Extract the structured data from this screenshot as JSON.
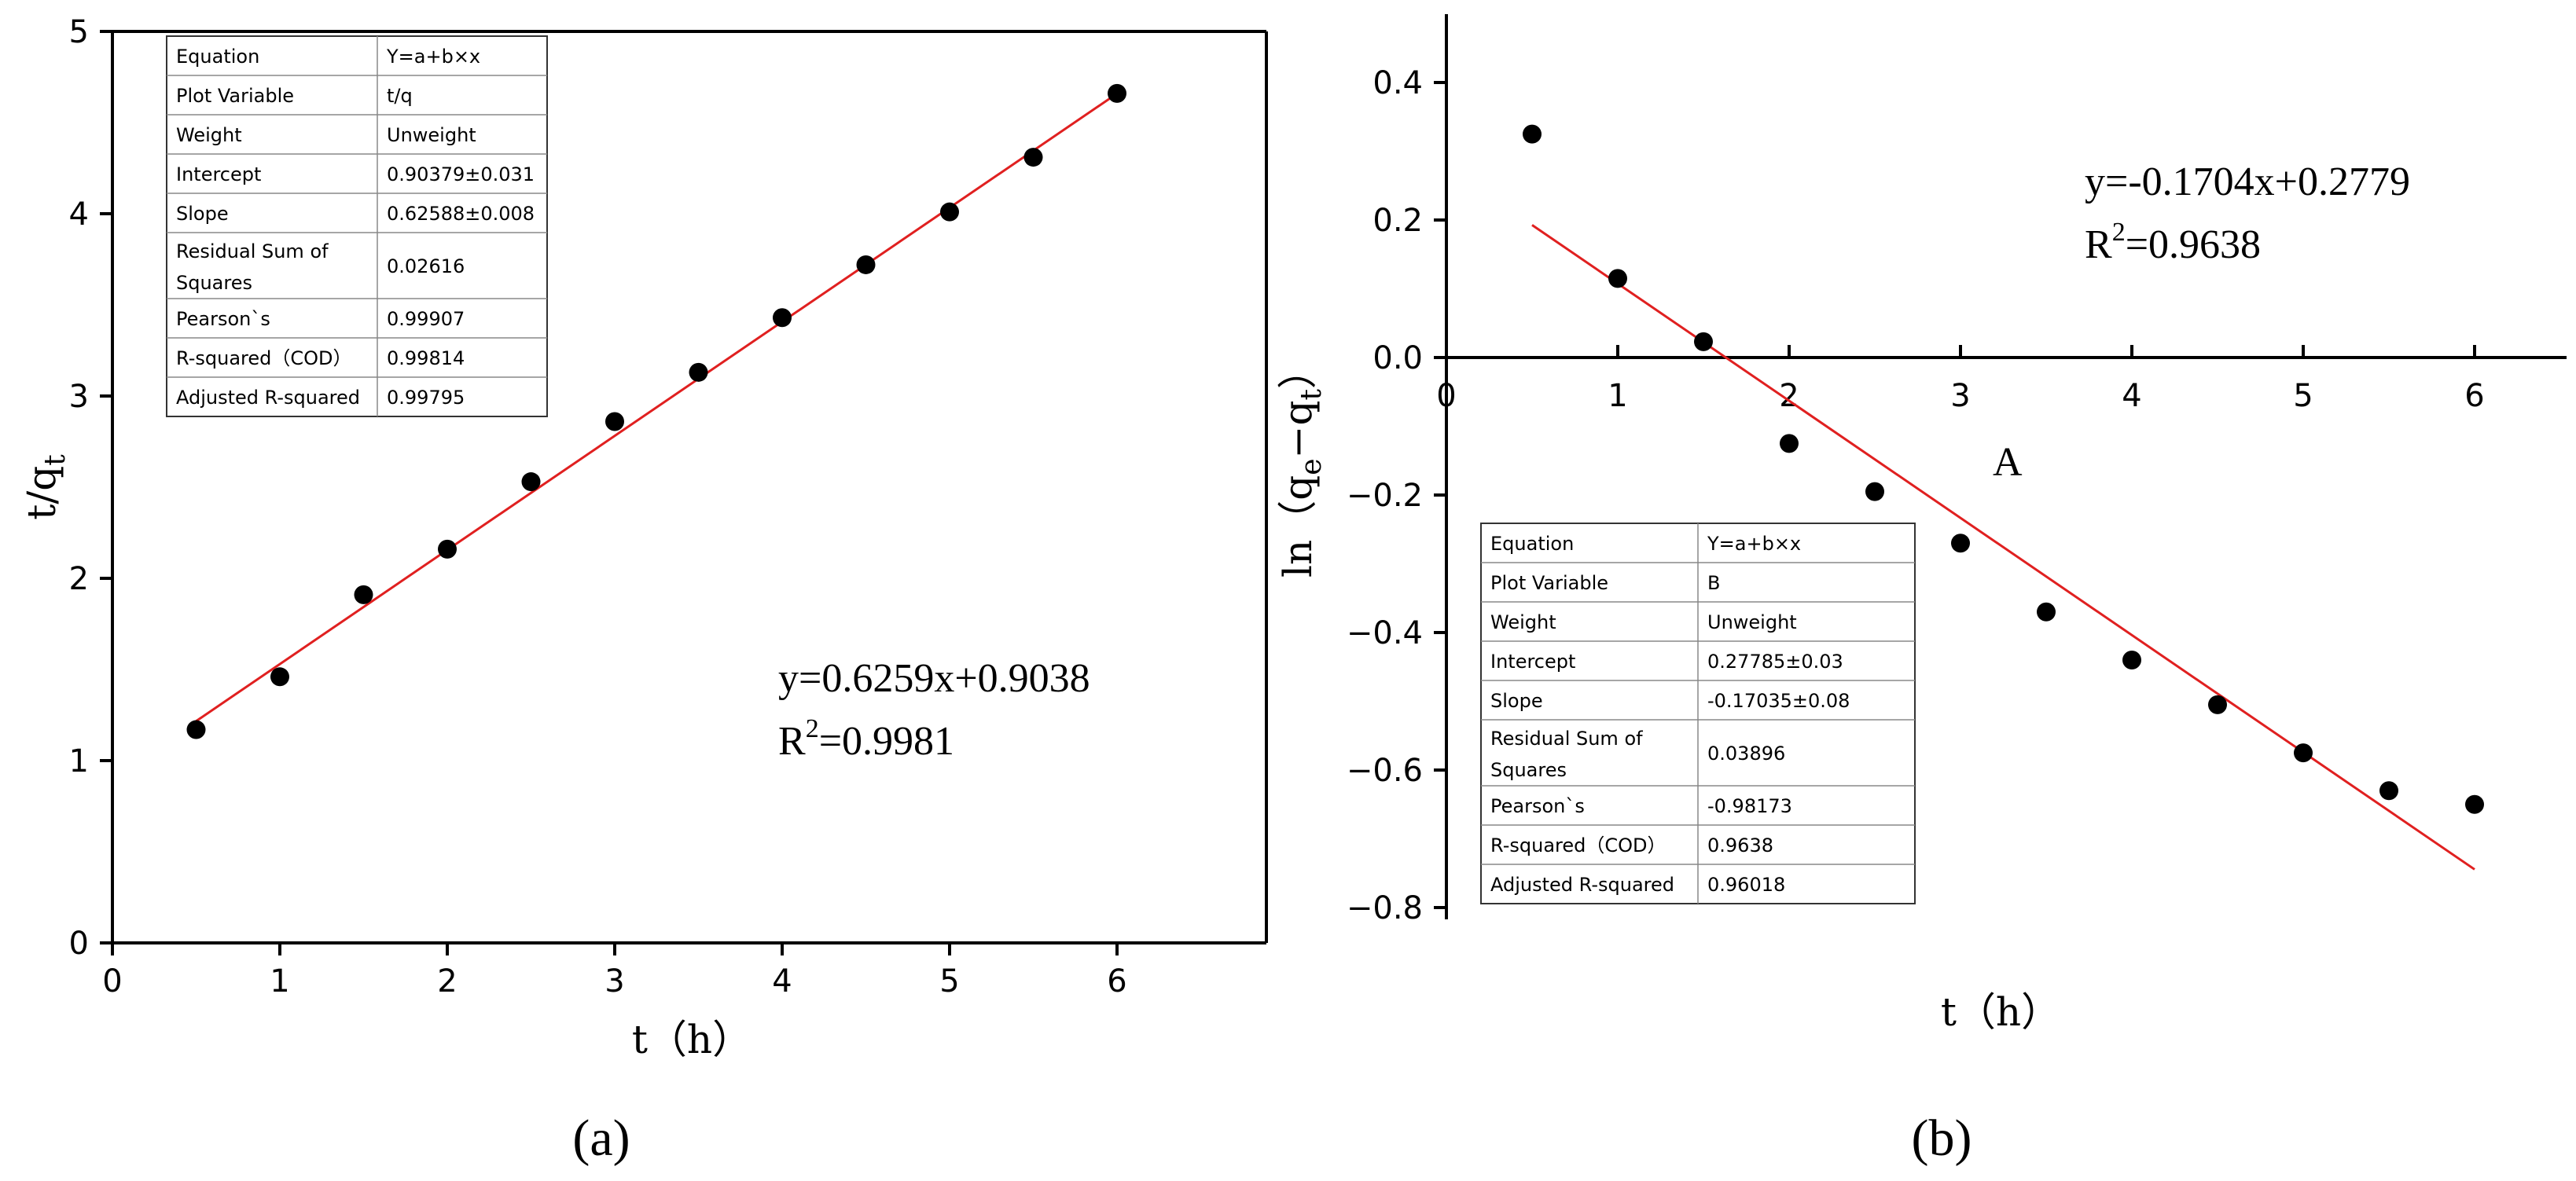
{
  "chart_data": [
    {
      "type": "scatter",
      "panel_label": "(a)",
      "xlabel": "t（h）",
      "ylabel": "t/q",
      "ylabel_sub": "t",
      "xlim": [
        0,
        7
      ],
      "ylim": [
        0,
        5
      ],
      "xticks": [
        0,
        1,
        2,
        3,
        4,
        5,
        6
      ],
      "yticks": [
        0,
        1,
        2,
        3,
        4,
        5
      ],
      "x": [
        0.5,
        1,
        1.5,
        2,
        2.5,
        3,
        3.5,
        4,
        4.5,
        5,
        5.5,
        6
      ],
      "y": [
        1.17,
        1.46,
        1.91,
        2.16,
        2.53,
        2.86,
        3.13,
        3.43,
        3.72,
        4.01,
        4.31,
        4.66
      ],
      "fit": {
        "slope": 0.6259,
        "intercept": 0.9038,
        "x_range": [
          0.5,
          6
        ]
      },
      "equation": "y=0.6259x+0.9038",
      "r2_label": "R",
      "r2_sup": "2",
      "r2_value": "=0.9981",
      "stats_table": [
        [
          "Equation",
          "Y=a+b×x"
        ],
        [
          "Plot Variable",
          "t/q"
        ],
        [
          "Weight",
          "Unweight"
        ],
        [
          "Intercept",
          "0.90379±0.031"
        ],
        [
          "Slope",
          "0.62588±0.008"
        ],
        [
          "Residual Sum of Squares",
          "0.02616"
        ],
        [
          "Pearson`s",
          "0.99907"
        ],
        [
          "R-squared（COD）",
          "0.99814"
        ],
        [
          "Adjusted R-squared",
          "0.99795"
        ]
      ],
      "grid": false
    },
    {
      "type": "scatter",
      "panel_label": "(b)",
      "xlabel": "t（h）",
      "ylabel": "ln（q",
      "ylabel_sub1": "e",
      "ylabel_mid": "−q",
      "ylabel_sub2": "t",
      "ylabel_end": "）",
      "xlim": [
        0,
        6.5
      ],
      "ylim": [
        -0.8,
        0.5
      ],
      "xticks": [
        0,
        1,
        2,
        3,
        4,
        5,
        6
      ],
      "yticks": [
        -0.8,
        -0.6,
        -0.4,
        -0.2,
        0.0,
        0.2,
        0.4
      ],
      "ytick_labels": [
        "−0.8",
        "−0.6",
        "−0.4",
        "−0.2",
        "0.0",
        "0.2",
        "0.4"
      ],
      "x": [
        0.5,
        1,
        1.5,
        2,
        2.5,
        3,
        3.5,
        4,
        4.5,
        5,
        5.5,
        6
      ],
      "y": [
        0.325,
        0.115,
        0.023,
        -0.125,
        -0.195,
        -0.27,
        -0.37,
        -0.44,
        -0.505,
        -0.575,
        -0.63,
        -0.65
      ],
      "fit": {
        "slope": -0.1704,
        "intercept": 0.2779,
        "x_range": [
          0.5,
          6
        ]
      },
      "equation": "y=-0.1704x+0.2779",
      "r2_label": "R",
      "r2_sup": "2",
      "r2_value": "=0.9638",
      "annotation": "A",
      "stats_table": [
        [
          "Equation",
          "Y=a+b×x"
        ],
        [
          "Plot Variable",
          "B"
        ],
        [
          "Weight",
          "Unweight"
        ],
        [
          "Intercept",
          "0.27785±0.03"
        ],
        [
          "Slope",
          "-0.17035±0.08"
        ],
        [
          "Residual Sum of Squares",
          "0.03896"
        ],
        [
          "Pearson`s",
          "-0.98173"
        ],
        [
          "R-squared（COD）",
          "0.9638"
        ],
        [
          "Adjusted R-squared",
          "0.96018"
        ]
      ],
      "grid": false
    }
  ]
}
